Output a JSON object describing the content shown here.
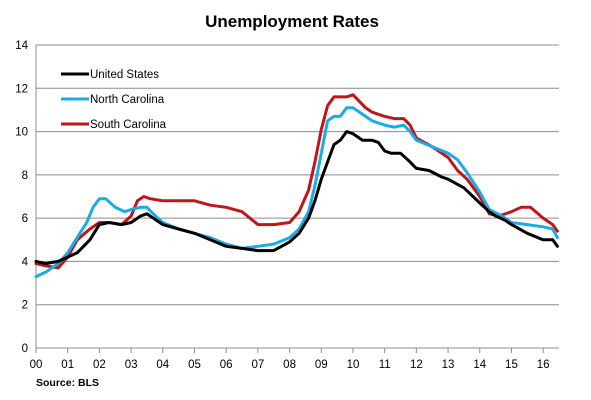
{
  "chart_data": {
    "type": "line",
    "title": "Unemployment Rates",
    "source": "Source: BLS",
    "xlabel": "",
    "ylabel": "",
    "xlim": [
      2000,
      2016.5
    ],
    "ylim": [
      0,
      14
    ],
    "yticks": [
      0,
      2,
      4,
      6,
      8,
      10,
      12,
      14
    ],
    "xticks": [
      {
        "x": 2000,
        "label": "00"
      },
      {
        "x": 2001,
        "label": "01"
      },
      {
        "x": 2002,
        "label": "02"
      },
      {
        "x": 2003,
        "label": "03"
      },
      {
        "x": 2004,
        "label": "04"
      },
      {
        "x": 2005,
        "label": "05"
      },
      {
        "x": 2006,
        "label": "06"
      },
      {
        "x": 2007,
        "label": "07"
      },
      {
        "x": 2008,
        "label": "08"
      },
      {
        "x": 2009,
        "label": "09"
      },
      {
        "x": 2010,
        "label": "10"
      },
      {
        "x": 2011,
        "label": "11"
      },
      {
        "x": 2012,
        "label": "12"
      },
      {
        "x": 2013,
        "label": "13"
      },
      {
        "x": 2014,
        "label": "14"
      },
      {
        "x": 2015,
        "label": "15"
      },
      {
        "x": 2016,
        "label": "16"
      }
    ],
    "grid": true,
    "legend_position": "top-left",
    "series": [
      {
        "name": "United States",
        "color": "#000000",
        "x": [
          2000,
          2000.3,
          2000.7,
          2001,
          2001.3,
          2001.7,
          2002,
          2002.3,
          2002.7,
          2003,
          2003.3,
          2003.5,
          2003.7,
          2004,
          2004.5,
          2005,
          2005.5,
          2006,
          2006.5,
          2007,
          2007.5,
          2008,
          2008.3,
          2008.6,
          2008.8,
          2009,
          2009.2,
          2009.4,
          2009.6,
          2009.8,
          2010,
          2010.3,
          2010.6,
          2010.8,
          2011,
          2011.2,
          2011.5,
          2011.8,
          2012,
          2012.4,
          2012.8,
          2013,
          2013.5,
          2014,
          2014.3,
          2014.5,
          2014.8,
          2015,
          2015.5,
          2016,
          2016.3,
          2016.45
        ],
        "values": [
          4.0,
          3.9,
          4.0,
          4.2,
          4.4,
          5.0,
          5.7,
          5.8,
          5.7,
          5.8,
          6.1,
          6.2,
          6.0,
          5.7,
          5.5,
          5.3,
          5.0,
          4.7,
          4.6,
          4.5,
          4.5,
          4.9,
          5.3,
          6.0,
          6.8,
          7.8,
          8.6,
          9.4,
          9.6,
          10.0,
          9.9,
          9.6,
          9.6,
          9.5,
          9.1,
          9.0,
          9.0,
          8.6,
          8.3,
          8.2,
          7.9,
          7.8,
          7.4,
          6.7,
          6.3,
          6.1,
          5.9,
          5.7,
          5.3,
          5.0,
          5.0,
          4.7
        ]
      },
      {
        "name": "North Carolina",
        "color": "#1AACE6",
        "x": [
          2000,
          2000.3,
          2000.7,
          2001,
          2001.3,
          2001.6,
          2001.8,
          2002,
          2002.2,
          2002.5,
          2002.8,
          2003,
          2003.3,
          2003.5,
          2003.7,
          2004,
          2004.5,
          2005,
          2005.5,
          2006,
          2006.5,
          2007,
          2007.5,
          2008,
          2008.3,
          2008.6,
          2008.8,
          2009,
          2009.2,
          2009.4,
          2009.6,
          2009.8,
          2010,
          2010.3,
          2010.6,
          2010.8,
          2011,
          2011.3,
          2011.6,
          2011.8,
          2012,
          2012.5,
          2013,
          2013.3,
          2013.6,
          2014,
          2014.3,
          2014.7,
          2015,
          2015.5,
          2016,
          2016.3,
          2016.45
        ],
        "values": [
          3.3,
          3.5,
          3.9,
          4.4,
          5.1,
          5.8,
          6.5,
          6.9,
          6.9,
          6.5,
          6.3,
          6.4,
          6.5,
          6.5,
          6.2,
          5.8,
          5.5,
          5.3,
          5.1,
          4.8,
          4.6,
          4.7,
          4.8,
          5.1,
          5.5,
          6.3,
          7.5,
          9.0,
          10.5,
          10.7,
          10.7,
          11.1,
          11.1,
          10.8,
          10.5,
          10.4,
          10.3,
          10.2,
          10.3,
          10.0,
          9.6,
          9.3,
          9.0,
          8.7,
          8.1,
          7.2,
          6.4,
          6.1,
          5.8,
          5.7,
          5.6,
          5.5,
          5.1
        ]
      },
      {
        "name": "South Carolina",
        "color": "#C0161B",
        "x": [
          2000,
          2000.3,
          2000.7,
          2001,
          2001.3,
          2001.7,
          2002,
          2002.3,
          2002.7,
          2003,
          2003.2,
          2003.4,
          2003.6,
          2004,
          2004.5,
          2005,
          2005.5,
          2006,
          2006.5,
          2007,
          2007.5,
          2008,
          2008.3,
          2008.6,
          2008.8,
          2009,
          2009.2,
          2009.4,
          2009.6,
          2009.8,
          2010,
          2010.2,
          2010.4,
          2010.6,
          2010.8,
          2011,
          2011.3,
          2011.6,
          2011.8,
          2012,
          2012.5,
          2013,
          2013.3,
          2013.6,
          2014,
          2014.3,
          2014.6,
          2015,
          2015.3,
          2015.6,
          2016,
          2016.3,
          2016.45
        ],
        "values": [
          3.9,
          3.8,
          3.7,
          4.2,
          5.0,
          5.5,
          5.8,
          5.8,
          5.7,
          6.1,
          6.8,
          7.0,
          6.9,
          6.8,
          6.8,
          6.8,
          6.6,
          6.5,
          6.3,
          5.7,
          5.7,
          5.8,
          6.3,
          7.3,
          8.6,
          10.1,
          11.2,
          11.6,
          11.6,
          11.6,
          11.7,
          11.4,
          11.1,
          10.9,
          10.8,
          10.7,
          10.6,
          10.6,
          10.3,
          9.7,
          9.3,
          8.8,
          8.2,
          7.8,
          7.0,
          6.2,
          6.1,
          6.3,
          6.5,
          6.5,
          6.0,
          5.7,
          5.4
        ]
      }
    ]
  }
}
